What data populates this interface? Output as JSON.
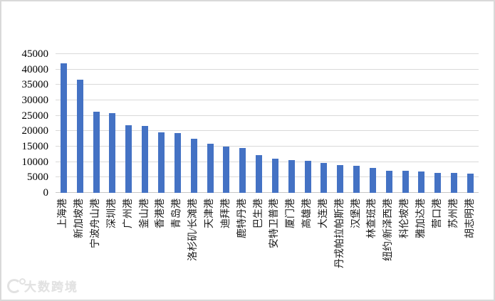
{
  "chart_data": {
    "type": "bar",
    "title": "",
    "xlabel": "",
    "ylabel": "",
    "categories": [
      "上海港",
      "新加坡港",
      "宁波舟山港",
      "深圳港",
      "广州港",
      "釜山港",
      "香港港",
      "青岛港",
      "洛杉矶/长滩港",
      "天津港",
      "迪拜港",
      "鹿特丹港",
      "巴生港",
      "安特卫普港",
      "厦门港",
      "高雄港",
      "大连港",
      "丹戎帕拉帕斯港",
      "汉堡港",
      "林查班港",
      "纽约/新泽西港",
      "科伦坡港",
      "雅加达港",
      "营口港",
      "苏州港",
      "胡志明港"
    ],
    "values": [
      42010,
      36600,
      26350,
      25740,
      21920,
      21660,
      19600,
      19320,
      17550,
      16000,
      14950,
      14510,
      12320,
      11100,
      10700,
      10450,
      9770,
      8960,
      8730,
      8070,
      7180,
      7050,
      6850,
      6490,
      6360,
      6330
    ],
    "ylim": [
      0,
      45000
    ],
    "yticks": [
      0,
      5000,
      10000,
      15000,
      20000,
      25000,
      30000,
      35000,
      40000,
      45000
    ],
    "grid": true,
    "legend_position": "none",
    "bar_color": "#4472C4",
    "gridline_color": "#D9D9D9",
    "tick_label_color": "#000000",
    "category_label_rotation_deg": -90
  },
  "watermark": {
    "logo": "swirl-circle-logo",
    "text": "大数跨境"
  }
}
